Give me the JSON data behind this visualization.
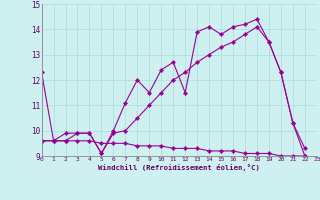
{
  "xlabel": "Windchill (Refroidissement éolien,°C)",
  "background_color": "#cef0f0",
  "grid_color": "#aadddd",
  "line_color": "#990099",
  "xlim": [
    0,
    23
  ],
  "ylim": [
    9,
    15
  ],
  "yticks": [
    9,
    10,
    11,
    12,
    13,
    14,
    15
  ],
  "xticks": [
    0,
    1,
    2,
    3,
    4,
    5,
    6,
    7,
    8,
    9,
    10,
    11,
    12,
    13,
    14,
    15,
    16,
    17,
    18,
    19,
    20,
    21,
    22,
    23
  ],
  "series1_x": [
    0,
    1,
    2,
    3,
    4,
    5,
    6,
    7,
    8,
    9,
    10,
    11,
    12,
    13,
    14,
    15,
    16,
    17,
    18,
    19,
    20,
    21,
    22
  ],
  "series1_y": [
    12.3,
    9.6,
    9.6,
    9.9,
    9.9,
    9.1,
    10.0,
    11.1,
    12.0,
    11.5,
    12.4,
    12.7,
    11.5,
    13.9,
    14.1,
    13.8,
    14.1,
    14.2,
    14.4,
    13.5,
    12.3,
    10.3,
    9.0
  ],
  "series2_x": [
    0,
    1,
    2,
    3,
    4,
    5,
    6,
    7,
    8,
    9,
    10,
    11,
    12,
    13,
    14,
    15,
    16,
    17,
    18,
    19,
    20,
    21,
    22
  ],
  "series2_y": [
    9.6,
    9.6,
    9.9,
    9.9,
    9.9,
    9.1,
    9.9,
    10.0,
    10.5,
    11.0,
    11.5,
    12.0,
    12.3,
    12.7,
    13.0,
    13.3,
    13.5,
    13.8,
    14.1,
    13.5,
    12.3,
    10.3,
    9.3
  ],
  "series3_x": [
    0,
    1,
    2,
    3,
    4,
    5,
    6,
    7,
    8,
    9,
    10,
    11,
    12,
    13,
    14,
    15,
    16,
    17,
    18,
    19,
    20,
    21,
    22
  ],
  "series3_y": [
    9.6,
    9.6,
    9.6,
    9.6,
    9.6,
    9.5,
    9.5,
    9.5,
    9.4,
    9.4,
    9.4,
    9.3,
    9.3,
    9.3,
    9.2,
    9.2,
    9.2,
    9.1,
    9.1,
    9.1,
    9.0,
    9.0,
    9.0
  ]
}
